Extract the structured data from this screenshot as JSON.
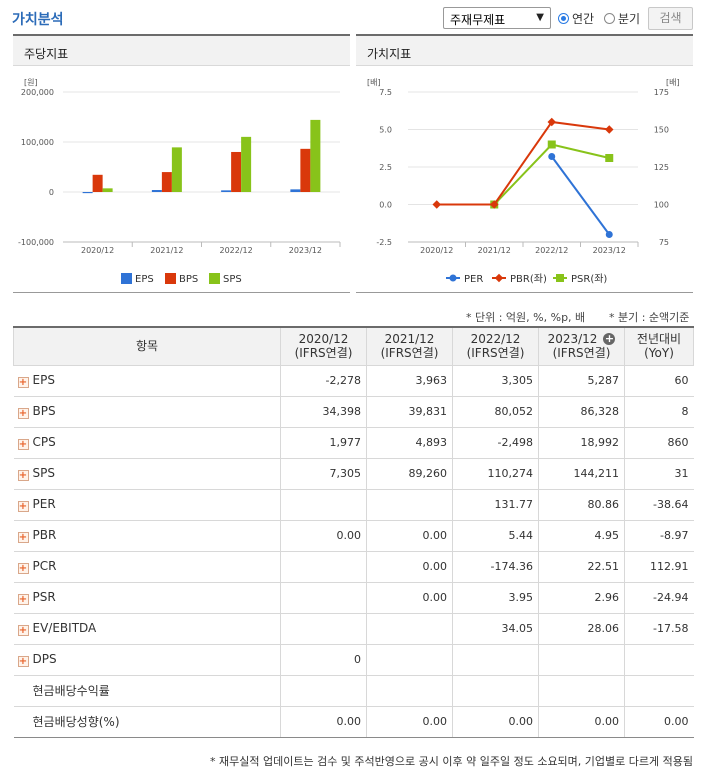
{
  "header": {
    "title": "가치분석",
    "select_value": "주재무제표",
    "radio_annual": "연간",
    "radio_quarter": "분기",
    "search_button": "검색"
  },
  "left_panel": {
    "title": "주당지표",
    "unit": "[원]"
  },
  "right_panel": {
    "title": "가치지표",
    "unit_left": "[배]",
    "unit_right": "[배]"
  },
  "notes": {
    "unit": "* 단위 : 억원, %, %p, 배",
    "quarter": "* 분기 : 순액기준"
  },
  "table": {
    "headers": [
      "항목",
      "2020/12\n(IFRS연결)",
      "2021/12\n(IFRS연결)",
      "2022/12\n(IFRS연결)",
      "2023/12\n(IFRS연결)",
      "전년대비\n(YoY)"
    ],
    "rows": [
      {
        "label": "EPS",
        "expand": true,
        "values": [
          "-2,278",
          "3,963",
          "3,305",
          "5,287",
          "60"
        ]
      },
      {
        "label": "BPS",
        "expand": true,
        "values": [
          "34,398",
          "39,831",
          "80,052",
          "86,328",
          "8"
        ]
      },
      {
        "label": "CPS",
        "expand": true,
        "values": [
          "1,977",
          "4,893",
          "-2,498",
          "18,992",
          "860"
        ]
      },
      {
        "label": "SPS",
        "expand": true,
        "values": [
          "7,305",
          "89,260",
          "110,274",
          "144,211",
          "31"
        ]
      },
      {
        "label": "PER",
        "expand": true,
        "values": [
          "",
          "",
          "131.77",
          "80.86",
          "-38.64"
        ]
      },
      {
        "label": "PBR",
        "expand": true,
        "values": [
          "0.00",
          "0.00",
          "5.44",
          "4.95",
          "-8.97"
        ]
      },
      {
        "label": "PCR",
        "expand": true,
        "values": [
          "",
          "0.00",
          "-174.36",
          "22.51",
          "112.91"
        ]
      },
      {
        "label": "PSR",
        "expand": true,
        "values": [
          "",
          "0.00",
          "3.95",
          "2.96",
          "-24.94"
        ]
      },
      {
        "label": "EV/EBITDA",
        "expand": true,
        "values": [
          "",
          "",
          "34.05",
          "28.06",
          "-17.58"
        ]
      },
      {
        "label": "DPS",
        "expand": true,
        "values": [
          "0",
          "",
          "",
          "",
          ""
        ]
      },
      {
        "label": "현금배당수익률",
        "expand": false,
        "values": [
          "",
          "",
          "",
          "",
          ""
        ]
      },
      {
        "label": "현금배당성향(%)",
        "expand": false,
        "values": [
          "0.00",
          "0.00",
          "0.00",
          "0.00",
          "0.00"
        ]
      }
    ]
  },
  "footnote": "* 재무실적 업데이트는 검수 및 주석반영으로 공시 이후 약 일주일 정도 소요되며, 기업별로 다르게 적용됨",
  "colors": {
    "eps": "#2f73d6",
    "bps": "#d9380b",
    "sps": "#88c31a",
    "per": "#2f73d6",
    "pbr": "#d9380b",
    "psr": "#88c31a",
    "negative": "#e02020",
    "title": "#2b6bb8"
  },
  "chart_data": [
    {
      "type": "bar",
      "categories": [
        "2020/12",
        "2021/12",
        "2022/12",
        "2023/12"
      ],
      "series": [
        {
          "name": "EPS",
          "values": [
            -2278,
            3963,
            3305,
            5287
          ]
        },
        {
          "name": "BPS",
          "values": [
            34398,
            39831,
            80052,
            86328
          ]
        },
        {
          "name": "SPS",
          "values": [
            7305,
            89260,
            110274,
            144211
          ]
        }
      ],
      "yticks": [
        "200,000",
        "100,000",
        "0",
        "-100,000"
      ],
      "ylim": [
        -100000,
        200000
      ],
      "grid": true,
      "legend": "bottom"
    },
    {
      "type": "line",
      "categories": [
        "2020/12",
        "2021/12",
        "2022/12",
        "2023/12"
      ],
      "series": [
        {
          "name": "PER",
          "axis": "left",
          "values": [
            null,
            null,
            3.2,
            -2.0
          ]
        },
        {
          "name": "PBR(좌)",
          "axis": "right",
          "values": [
            100,
            100,
            155,
            150
          ]
        },
        {
          "name": "PSR(좌)",
          "axis": "right",
          "values": [
            null,
            100,
            140,
            131
          ]
        }
      ],
      "left_ticks": [
        "7.5",
        "5.0",
        "2.5",
        "0.0",
        "-2.5"
      ],
      "right_ticks": [
        "175",
        "150",
        "125",
        "100",
        "75"
      ],
      "ylim_left": [
        -2.5,
        7.5
      ],
      "ylim_right": [
        75,
        175
      ],
      "grid": true,
      "legend": "bottom"
    }
  ]
}
